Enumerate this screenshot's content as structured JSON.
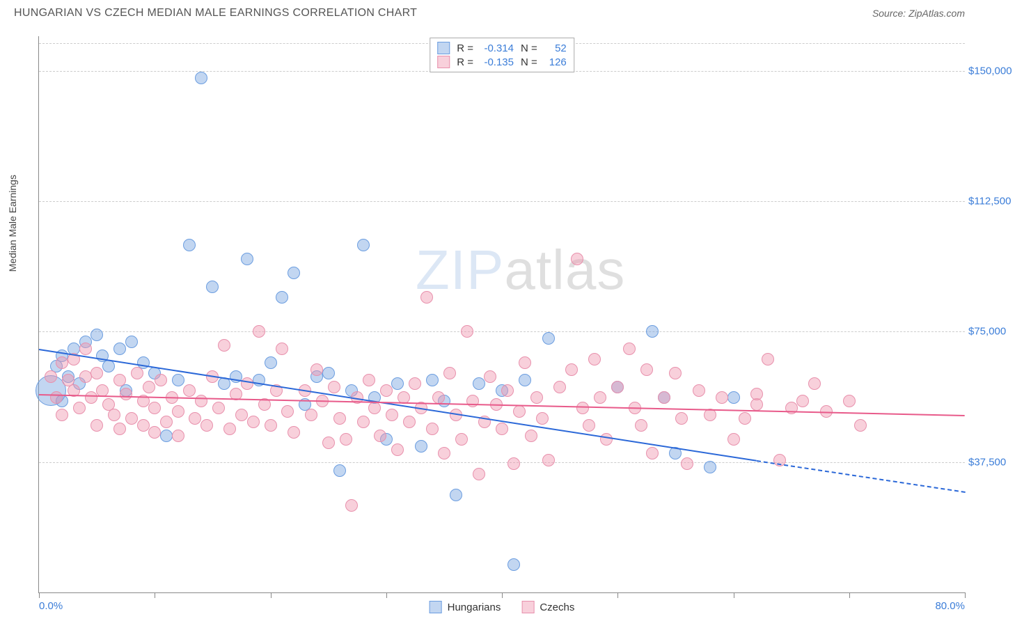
{
  "header": {
    "title": "HUNGARIAN VS CZECH MEDIAN MALE EARNINGS CORRELATION CHART",
    "source": "Source: ZipAtlas.com"
  },
  "watermark": {
    "zip": "ZIP",
    "atlas": "atlas"
  },
  "chart": {
    "type": "scatter",
    "y_axis_label": "Median Male Earnings",
    "background_color": "#ffffff",
    "grid_color": "#cccccc",
    "axis_color": "#888888",
    "xlim": [
      0,
      80
    ],
    "ylim": [
      0,
      160000
    ],
    "x_ticks": [
      0,
      10,
      20,
      30,
      40,
      50,
      60,
      70,
      80
    ],
    "x_tick_labels": {
      "0": "0.0%",
      "80": "80.0%"
    },
    "y_ticks": [
      37500,
      75000,
      112500,
      150000
    ],
    "y_tick_labels": [
      "$37,500",
      "$75,000",
      "$112,500",
      "$150,000"
    ],
    "label_color": "#3b7dd8",
    "label_fontsize": 15,
    "series": [
      {
        "name": "Hungarians",
        "fill_color": "rgba(120, 165, 225, 0.45)",
        "stroke_color": "#6b9de0",
        "marker_radius": 9,
        "r_value": "-0.314",
        "n_value": "52",
        "trend": {
          "color": "#2b68d8",
          "width": 2,
          "x1_pct": 0,
          "y1": 70000,
          "x2_pct": 62,
          "y2": 38000,
          "dash_x2_pct": 80,
          "dash_y2": 29000
        },
        "points": [
          {
            "x": 1,
            "y": 58000,
            "r": 22
          },
          {
            "x": 1.5,
            "y": 65000
          },
          {
            "x": 2,
            "y": 68000
          },
          {
            "x": 2,
            "y": 55000
          },
          {
            "x": 2.5,
            "y": 62000
          },
          {
            "x": 3,
            "y": 70000
          },
          {
            "x": 3.5,
            "y": 60000
          },
          {
            "x": 4,
            "y": 72000
          },
          {
            "x": 5,
            "y": 74000
          },
          {
            "x": 5.5,
            "y": 68000
          },
          {
            "x": 6,
            "y": 65000
          },
          {
            "x": 7,
            "y": 70000
          },
          {
            "x": 7.5,
            "y": 58000
          },
          {
            "x": 8,
            "y": 72000
          },
          {
            "x": 9,
            "y": 66000
          },
          {
            "x": 10,
            "y": 63000
          },
          {
            "x": 11,
            "y": 45000
          },
          {
            "x": 12,
            "y": 61000
          },
          {
            "x": 13,
            "y": 100000
          },
          {
            "x": 14,
            "y": 148000
          },
          {
            "x": 15,
            "y": 88000
          },
          {
            "x": 16,
            "y": 60000
          },
          {
            "x": 17,
            "y": 62000
          },
          {
            "x": 18,
            "y": 96000
          },
          {
            "x": 19,
            "y": 61000
          },
          {
            "x": 20,
            "y": 66000
          },
          {
            "x": 21,
            "y": 85000
          },
          {
            "x": 22,
            "y": 92000
          },
          {
            "x": 23,
            "y": 54000
          },
          {
            "x": 24,
            "y": 62000
          },
          {
            "x": 25,
            "y": 63000
          },
          {
            "x": 26,
            "y": 35000
          },
          {
            "x": 27,
            "y": 58000
          },
          {
            "x": 28,
            "y": 100000
          },
          {
            "x": 29,
            "y": 56000
          },
          {
            "x": 30,
            "y": 44000
          },
          {
            "x": 31,
            "y": 60000
          },
          {
            "x": 33,
            "y": 42000
          },
          {
            "x": 34,
            "y": 61000
          },
          {
            "x": 35,
            "y": 55000
          },
          {
            "x": 36,
            "y": 28000
          },
          {
            "x": 38,
            "y": 60000
          },
          {
            "x": 40,
            "y": 58000
          },
          {
            "x": 41,
            "y": 8000
          },
          {
            "x": 42,
            "y": 61000
          },
          {
            "x": 44,
            "y": 73000
          },
          {
            "x": 50,
            "y": 59000
          },
          {
            "x": 53,
            "y": 75000
          },
          {
            "x": 54,
            "y": 56000
          },
          {
            "x": 58,
            "y": 36000
          },
          {
            "x": 60,
            "y": 56000
          },
          {
            "x": 55,
            "y": 40000
          }
        ]
      },
      {
        "name": "Czechs",
        "fill_color": "rgba(240, 150, 175, 0.45)",
        "stroke_color": "#e890ac",
        "marker_radius": 9,
        "r_value": "-0.135",
        "n_value": "126",
        "trend": {
          "color": "#e85a8a",
          "width": 2,
          "x1_pct": 0,
          "y1": 57000,
          "x2_pct": 80,
          "y2": 51000
        },
        "points": [
          {
            "x": 1,
            "y": 62000
          },
          {
            "x": 1.5,
            "y": 56000
          },
          {
            "x": 2,
            "y": 66000
          },
          {
            "x": 2,
            "y": 51000
          },
          {
            "x": 2.5,
            "y": 61000
          },
          {
            "x": 3,
            "y": 58000
          },
          {
            "x": 3,
            "y": 67000
          },
          {
            "x": 3.5,
            "y": 53000
          },
          {
            "x": 4,
            "y": 62000
          },
          {
            "x": 4,
            "y": 70000
          },
          {
            "x": 4.5,
            "y": 56000
          },
          {
            "x": 5,
            "y": 48000
          },
          {
            "x": 5,
            "y": 63000
          },
          {
            "x": 5.5,
            "y": 58000
          },
          {
            "x": 6,
            "y": 54000
          },
          {
            "x": 6.5,
            "y": 51000
          },
          {
            "x": 7,
            "y": 61000
          },
          {
            "x": 7,
            "y": 47000
          },
          {
            "x": 7.5,
            "y": 57000
          },
          {
            "x": 8,
            "y": 50000
          },
          {
            "x": 8.5,
            "y": 63000
          },
          {
            "x": 9,
            "y": 55000
          },
          {
            "x": 9,
            "y": 48000
          },
          {
            "x": 9.5,
            "y": 59000
          },
          {
            "x": 10,
            "y": 53000
          },
          {
            "x": 10,
            "y": 46000
          },
          {
            "x": 10.5,
            "y": 61000
          },
          {
            "x": 11,
            "y": 49000
          },
          {
            "x": 11.5,
            "y": 56000
          },
          {
            "x": 12,
            "y": 52000
          },
          {
            "x": 12,
            "y": 45000
          },
          {
            "x": 13,
            "y": 58000
          },
          {
            "x": 13.5,
            "y": 50000
          },
          {
            "x": 14,
            "y": 55000
          },
          {
            "x": 14.5,
            "y": 48000
          },
          {
            "x": 15,
            "y": 62000
          },
          {
            "x": 15.5,
            "y": 53000
          },
          {
            "x": 16,
            "y": 71000
          },
          {
            "x": 16.5,
            "y": 47000
          },
          {
            "x": 17,
            "y": 57000
          },
          {
            "x": 17.5,
            "y": 51000
          },
          {
            "x": 18,
            "y": 60000
          },
          {
            "x": 18.5,
            "y": 49000
          },
          {
            "x": 19,
            "y": 75000
          },
          {
            "x": 19.5,
            "y": 54000
          },
          {
            "x": 20,
            "y": 48000
          },
          {
            "x": 20.5,
            "y": 58000
          },
          {
            "x": 21,
            "y": 70000
          },
          {
            "x": 21.5,
            "y": 52000
          },
          {
            "x": 22,
            "y": 46000
          },
          {
            "x": 23,
            "y": 58000
          },
          {
            "x": 23.5,
            "y": 51000
          },
          {
            "x": 24,
            "y": 64000
          },
          {
            "x": 24.5,
            "y": 55000
          },
          {
            "x": 25,
            "y": 43000
          },
          {
            "x": 25.5,
            "y": 59000
          },
          {
            "x": 26,
            "y": 50000
          },
          {
            "x": 26.5,
            "y": 44000
          },
          {
            "x": 27,
            "y": 25000
          },
          {
            "x": 27.5,
            "y": 56000
          },
          {
            "x": 28,
            "y": 49000
          },
          {
            "x": 28.5,
            "y": 61000
          },
          {
            "x": 29,
            "y": 53000
          },
          {
            "x": 29.5,
            "y": 45000
          },
          {
            "x": 30,
            "y": 58000
          },
          {
            "x": 30.5,
            "y": 51000
          },
          {
            "x": 31,
            "y": 41000
          },
          {
            "x": 31.5,
            "y": 56000
          },
          {
            "x": 32,
            "y": 49000
          },
          {
            "x": 32.5,
            "y": 60000
          },
          {
            "x": 33,
            "y": 53000
          },
          {
            "x": 33.5,
            "y": 85000
          },
          {
            "x": 34,
            "y": 47000
          },
          {
            "x": 34.5,
            "y": 56000
          },
          {
            "x": 35,
            "y": 40000
          },
          {
            "x": 35.5,
            "y": 63000
          },
          {
            "x": 36,
            "y": 51000
          },
          {
            "x": 36.5,
            "y": 44000
          },
          {
            "x": 37,
            "y": 75000
          },
          {
            "x": 37.5,
            "y": 55000
          },
          {
            "x": 38,
            "y": 34000
          },
          {
            "x": 38.5,
            "y": 49000
          },
          {
            "x": 39,
            "y": 62000
          },
          {
            "x": 39.5,
            "y": 54000
          },
          {
            "x": 40,
            "y": 47000
          },
          {
            "x": 40.5,
            "y": 58000
          },
          {
            "x": 41,
            "y": 37000
          },
          {
            "x": 41.5,
            "y": 52000
          },
          {
            "x": 42,
            "y": 66000
          },
          {
            "x": 42.5,
            "y": 45000
          },
          {
            "x": 43,
            "y": 56000
          },
          {
            "x": 43.5,
            "y": 50000
          },
          {
            "x": 44,
            "y": 38000
          },
          {
            "x": 45,
            "y": 59000
          },
          {
            "x": 46,
            "y": 64000
          },
          {
            "x": 46.5,
            "y": 96000
          },
          {
            "x": 47,
            "y": 53000
          },
          {
            "x": 47.5,
            "y": 48000
          },
          {
            "x": 48,
            "y": 67000
          },
          {
            "x": 48.5,
            "y": 56000
          },
          {
            "x": 49,
            "y": 44000
          },
          {
            "x": 50,
            "y": 59000
          },
          {
            "x": 51,
            "y": 70000
          },
          {
            "x": 51.5,
            "y": 53000
          },
          {
            "x": 52,
            "y": 48000
          },
          {
            "x": 52.5,
            "y": 64000
          },
          {
            "x": 53,
            "y": 40000
          },
          {
            "x": 54,
            "y": 56000
          },
          {
            "x": 55,
            "y": 63000
          },
          {
            "x": 55.5,
            "y": 50000
          },
          {
            "x": 56,
            "y": 37000
          },
          {
            "x": 57,
            "y": 58000
          },
          {
            "x": 58,
            "y": 51000
          },
          {
            "x": 59,
            "y": 56000
          },
          {
            "x": 60,
            "y": 44000
          },
          {
            "x": 61,
            "y": 50000
          },
          {
            "x": 62,
            "y": 54000
          },
          {
            "x": 62,
            "y": 57000
          },
          {
            "x": 63,
            "y": 67000
          },
          {
            "x": 64,
            "y": 38000
          },
          {
            "x": 65,
            "y": 53000
          },
          {
            "x": 66,
            "y": 55000
          },
          {
            "x": 67,
            "y": 60000
          },
          {
            "x": 68,
            "y": 52000
          },
          {
            "x": 70,
            "y": 55000
          },
          {
            "x": 71,
            "y": 48000
          }
        ]
      }
    ]
  }
}
